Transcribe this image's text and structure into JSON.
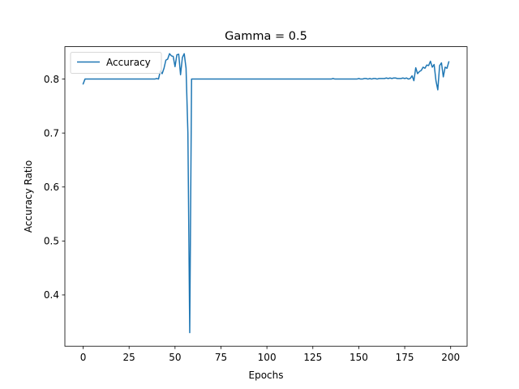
{
  "chart_data": {
    "type": "line",
    "title": "Gamma = 0.5",
    "xlabel": "Epochs",
    "ylabel": "Accuracy Ratio",
    "xlim": [
      -9.95,
      208.95
    ],
    "ylim": [
      0.305,
      0.86
    ],
    "xticks": [
      0,
      25,
      50,
      75,
      100,
      125,
      150,
      175,
      200
    ],
    "yticks": [
      0.4,
      0.5,
      0.6,
      0.7,
      0.8
    ],
    "xtick_labels": [
      "0",
      "25",
      "50",
      "75",
      "100",
      "125",
      "150",
      "175",
      "200"
    ],
    "ytick_labels": [
      "0.4",
      "0.5",
      "0.6",
      "0.7",
      "0.8"
    ],
    "grid": false,
    "legend_position": "upper-left",
    "series": [
      {
        "name": "Accuracy",
        "color": "#1f77b4",
        "x": [
          0,
          1,
          2,
          3,
          4,
          5,
          6,
          7,
          8,
          9,
          10,
          11,
          12,
          13,
          14,
          15,
          16,
          17,
          18,
          19,
          20,
          21,
          22,
          23,
          24,
          25,
          26,
          27,
          28,
          29,
          30,
          31,
          32,
          33,
          34,
          35,
          36,
          37,
          38,
          39,
          40,
          41,
          42,
          43,
          44,
          45,
          46,
          47,
          48,
          49,
          50,
          51,
          52,
          53,
          54,
          55,
          56,
          57,
          58,
          59,
          60,
          61,
          62,
          63,
          64,
          65,
          66,
          67,
          68,
          69,
          70,
          71,
          72,
          73,
          74,
          75,
          76,
          77,
          78,
          79,
          80,
          81,
          82,
          83,
          84,
          85,
          86,
          87,
          88,
          89,
          90,
          91,
          92,
          93,
          94,
          95,
          96,
          97,
          98,
          99,
          100,
          101,
          102,
          103,
          104,
          105,
          106,
          107,
          108,
          109,
          110,
          111,
          112,
          113,
          114,
          115,
          116,
          117,
          118,
          119,
          120,
          121,
          122,
          123,
          124,
          125,
          126,
          127,
          128,
          129,
          130,
          131,
          132,
          133,
          134,
          135,
          136,
          137,
          138,
          139,
          140,
          141,
          142,
          143,
          144,
          145,
          146,
          147,
          148,
          149,
          150,
          151,
          152,
          153,
          154,
          155,
          156,
          157,
          158,
          159,
          160,
          161,
          162,
          163,
          164,
          165,
          166,
          167,
          168,
          169,
          170,
          171,
          172,
          173,
          174,
          175,
          176,
          177,
          178,
          179,
          180,
          181,
          182,
          183,
          184,
          185,
          186,
          187,
          188,
          189,
          190,
          191,
          192,
          193,
          194,
          195,
          196,
          197,
          198,
          199
        ],
        "values": [
          0.791,
          0.8,
          0.8,
          0.8,
          0.8,
          0.8,
          0.8,
          0.8,
          0.8,
          0.8,
          0.8,
          0.8,
          0.8,
          0.8,
          0.8,
          0.8,
          0.8,
          0.8,
          0.8,
          0.8,
          0.8,
          0.8,
          0.8,
          0.8,
          0.8,
          0.8,
          0.8,
          0.8,
          0.8,
          0.8,
          0.8,
          0.8,
          0.8,
          0.8,
          0.8,
          0.8,
          0.8,
          0.8,
          0.8,
          0.8,
          0.801,
          0.8,
          0.815,
          0.81,
          0.82,
          0.835,
          0.837,
          0.847,
          0.843,
          0.842,
          0.823,
          0.845,
          0.846,
          0.808,
          0.84,
          0.847,
          0.82,
          0.7,
          0.33,
          0.8,
          0.8,
          0.8,
          0.8,
          0.8,
          0.8,
          0.8,
          0.8,
          0.8,
          0.8,
          0.8,
          0.8,
          0.8,
          0.8,
          0.8,
          0.8,
          0.8,
          0.8,
          0.8,
          0.8,
          0.8,
          0.8,
          0.8,
          0.8,
          0.8,
          0.8,
          0.8,
          0.8,
          0.8,
          0.8,
          0.8,
          0.8,
          0.8,
          0.8,
          0.8,
          0.8,
          0.8,
          0.8,
          0.8,
          0.8,
          0.8,
          0.8,
          0.8,
          0.8,
          0.8,
          0.8,
          0.8,
          0.8,
          0.8,
          0.8,
          0.8,
          0.8,
          0.8,
          0.8,
          0.8,
          0.8,
          0.8,
          0.8,
          0.8,
          0.8,
          0.8,
          0.8,
          0.8,
          0.8,
          0.8,
          0.8,
          0.8,
          0.8,
          0.8,
          0.8,
          0.8,
          0.8,
          0.8,
          0.8,
          0.8,
          0.8,
          0.8,
          0.801,
          0.8,
          0.8,
          0.8,
          0.8,
          0.8,
          0.8,
          0.8,
          0.8,
          0.8,
          0.8,
          0.8,
          0.8,
          0.8,
          0.801,
          0.8,
          0.8,
          0.801,
          0.801,
          0.8,
          0.801,
          0.8,
          0.801,
          0.801,
          0.8,
          0.801,
          0.801,
          0.801,
          0.801,
          0.802,
          0.801,
          0.802,
          0.801,
          0.802,
          0.802,
          0.801,
          0.801,
          0.801,
          0.802,
          0.801,
          0.802,
          0.8,
          0.801,
          0.806,
          0.797,
          0.821,
          0.81,
          0.814,
          0.816,
          0.822,
          0.82,
          0.826,
          0.825,
          0.833,
          0.822,
          0.827,
          0.797,
          0.78,
          0.825,
          0.83,
          0.804,
          0.822,
          0.82,
          0.832
        ]
      }
    ]
  }
}
